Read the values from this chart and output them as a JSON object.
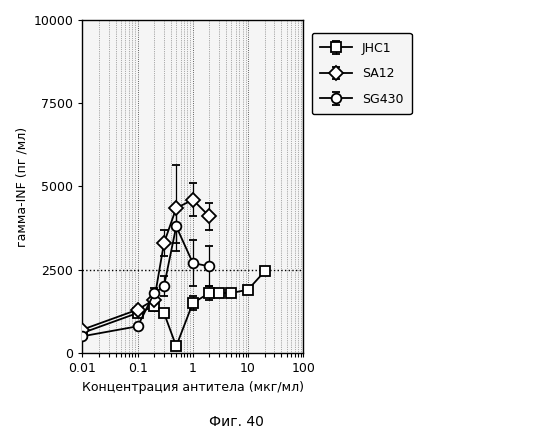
{
  "xlabel": "Концентрация антитела (мкг/мл)",
  "ylabel": "гамма-INF (пг /мл)",
  "caption": "Фиг. 40",
  "ylim": [
    0,
    10000
  ],
  "yticks": [
    0,
    2500,
    5000,
    7500,
    10000
  ],
  "series": {
    "JHC1": {
      "x": [
        0.01,
        0.1,
        0.2,
        0.3,
        0.5,
        1.0,
        2.0,
        3.0,
        5.0,
        10.0,
        20.0
      ],
      "y": [
        600,
        1200,
        1400,
        1200,
        200,
        1500,
        1800,
        1800,
        1800,
        1900,
        2450
      ],
      "yerr": [
        0,
        0,
        0,
        0,
        0,
        200,
        200,
        0,
        0,
        0,
        0
      ],
      "marker": "s",
      "linestyle": "-"
    },
    "SA12": {
      "x": [
        0.01,
        0.1,
        0.2,
        0.3,
        0.5,
        1.0,
        2.0
      ],
      "y": [
        700,
        1300,
        1600,
        3300,
        4350,
        4600,
        4100
      ],
      "yerr": [
        0,
        0,
        350,
        400,
        1300,
        500,
        400
      ],
      "marker": "D",
      "linestyle": "-"
    },
    "SG430": {
      "x": [
        0.01,
        0.1,
        0.2,
        0.3,
        0.5,
        1.0,
        2.0
      ],
      "y": [
        500,
        800,
        1800,
        2000,
        3800,
        2700,
        2600
      ],
      "yerr": [
        0,
        0,
        0,
        300,
        500,
        700,
        600
      ],
      "marker": "o",
      "linestyle": "-"
    }
  },
  "hline_y": 2500,
  "markersize": 7,
  "linewidth": 1.3
}
